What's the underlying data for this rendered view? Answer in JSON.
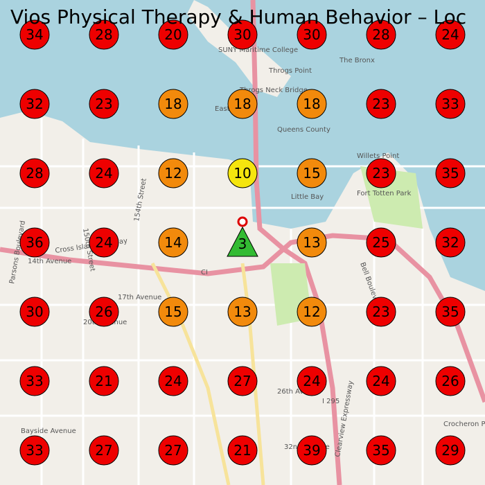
{
  "header": {
    "title": "Vios Physical Therapy & Human Behavior – Loc"
  },
  "grid": {
    "rows": [
      [
        {
          "rank": 34,
          "color": "#ee0000",
          "shape": "circle"
        },
        {
          "rank": 28,
          "color": "#ee0000",
          "shape": "circle"
        },
        {
          "rank": 20,
          "color": "#ee0000",
          "shape": "circle"
        },
        {
          "rank": 30,
          "color": "#ee0000",
          "shape": "circle"
        },
        {
          "rank": 30,
          "color": "#ee0000",
          "shape": "circle"
        },
        {
          "rank": 28,
          "color": "#ee0000",
          "shape": "circle"
        },
        {
          "rank": 24,
          "color": "#ee0000",
          "shape": "circle"
        }
      ],
      [
        {
          "rank": 32,
          "color": "#ee0000",
          "shape": "circle"
        },
        {
          "rank": 23,
          "color": "#ee0000",
          "shape": "circle"
        },
        {
          "rank": 18,
          "color": "#f28a0c",
          "shape": "circle"
        },
        {
          "rank": 18,
          "color": "#f28a0c",
          "shape": "circle"
        },
        {
          "rank": 18,
          "color": "#f28a0c",
          "shape": "circle"
        },
        {
          "rank": 23,
          "color": "#ee0000",
          "shape": "circle"
        },
        {
          "rank": 33,
          "color": "#ee0000",
          "shape": "circle"
        }
      ],
      [
        {
          "rank": 28,
          "color": "#ee0000",
          "shape": "circle"
        },
        {
          "rank": 24,
          "color": "#ee0000",
          "shape": "circle"
        },
        {
          "rank": 12,
          "color": "#f28a0c",
          "shape": "circle"
        },
        {
          "rank": 10,
          "color": "#f5e50e",
          "shape": "circle"
        },
        {
          "rank": 15,
          "color": "#f28a0c",
          "shape": "circle"
        },
        {
          "rank": 23,
          "color": "#ee0000",
          "shape": "circle"
        },
        {
          "rank": 35,
          "color": "#ee0000",
          "shape": "circle"
        }
      ],
      [
        {
          "rank": 36,
          "color": "#ee0000",
          "shape": "circle"
        },
        {
          "rank": 24,
          "color": "#ee0000",
          "shape": "circle"
        },
        {
          "rank": 14,
          "color": "#f28a0c",
          "shape": "circle"
        },
        {
          "rank": 3,
          "color": "#33bb33",
          "shape": "triangle"
        },
        {
          "rank": 13,
          "color": "#f28a0c",
          "shape": "circle"
        },
        {
          "rank": 25,
          "color": "#ee0000",
          "shape": "circle"
        },
        {
          "rank": 32,
          "color": "#ee0000",
          "shape": "circle"
        }
      ],
      [
        {
          "rank": 30,
          "color": "#ee0000",
          "shape": "circle"
        },
        {
          "rank": 26,
          "color": "#ee0000",
          "shape": "circle"
        },
        {
          "rank": 15,
          "color": "#f28a0c",
          "shape": "circle"
        },
        {
          "rank": 13,
          "color": "#f28a0c",
          "shape": "circle"
        },
        {
          "rank": 12,
          "color": "#f28a0c",
          "shape": "circle"
        },
        {
          "rank": 23,
          "color": "#ee0000",
          "shape": "circle"
        },
        {
          "rank": 35,
          "color": "#ee0000",
          "shape": "circle"
        }
      ],
      [
        {
          "rank": 33,
          "color": "#ee0000",
          "shape": "circle"
        },
        {
          "rank": 21,
          "color": "#ee0000",
          "shape": "circle"
        },
        {
          "rank": 24,
          "color": "#ee0000",
          "shape": "circle"
        },
        {
          "rank": 27,
          "color": "#ee0000",
          "shape": "circle"
        },
        {
          "rank": 24,
          "color": "#ee0000",
          "shape": "circle"
        },
        {
          "rank": 24,
          "color": "#ee0000",
          "shape": "circle"
        },
        {
          "rank": 26,
          "color": "#ee0000",
          "shape": "circle"
        }
      ],
      [
        {
          "rank": 33,
          "color": "#ee0000",
          "shape": "circle"
        },
        {
          "rank": 27,
          "color": "#ee0000",
          "shape": "circle"
        },
        {
          "rank": 27,
          "color": "#ee0000",
          "shape": "circle"
        },
        {
          "rank": 21,
          "color": "#ee0000",
          "shape": "circle"
        },
        {
          "rank": 39,
          "color": "#ee0000",
          "shape": "circle"
        },
        {
          "rank": 35,
          "color": "#ee0000",
          "shape": "circle"
        },
        {
          "rank": 29,
          "color": "#ee0000",
          "shape": "circle"
        }
      ]
    ]
  },
  "map_labels": [
    "Throgs Point",
    "Throgs Neck Bridge",
    "SUNY Maritime College",
    "Queens County",
    "East River",
    "Little Bay",
    "Fort Totten Park",
    "Willets Point",
    "Cross Island Parkway",
    "Bell Boulevard",
    "17th Avenue",
    "20th Avenue",
    "26th Avenue",
    "Bayside Avenue",
    "32nd Avenue",
    "14th Avenue",
    "Parsons Boulevard",
    "150th Street",
    "154th Street",
    "I 295",
    "CI",
    "Crocheron Park",
    "The Bronx",
    "Clearview Expressway"
  ]
}
